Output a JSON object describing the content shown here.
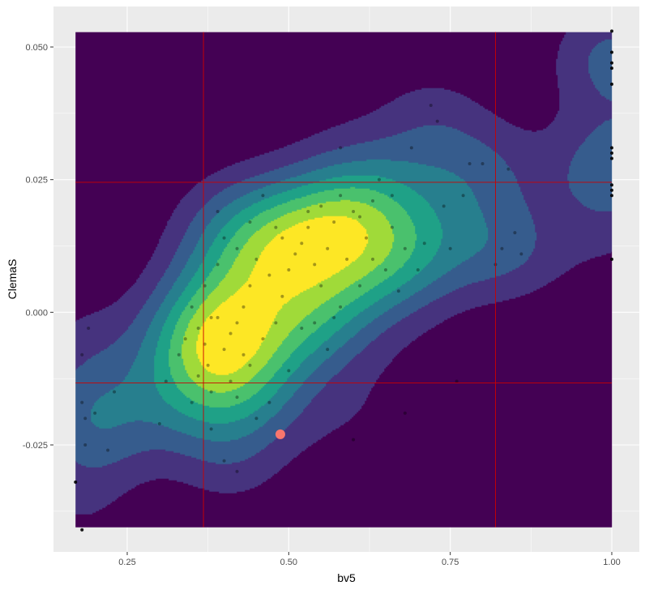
{
  "chart_data": {
    "type": "density2d",
    "xlabel": "bv5",
    "ylabel": "ClemaS",
    "xlim": [
      0.17,
      1.0
    ],
    "ylim": [
      -0.0405,
      0.0528
    ],
    "x_ticks": [
      {
        "value": 0.25,
        "label": "0.25"
      },
      {
        "value": 0.5,
        "label": "0.50"
      },
      {
        "value": 0.75,
        "label": "0.75"
      },
      {
        "value": 1.0,
        "label": "1.00"
      }
    ],
    "y_ticks": [
      {
        "value": -0.025,
        "label": "-0.025"
      },
      {
        "value": 0.0,
        "label": "0.000"
      },
      {
        "value": 0.025,
        "label": "0.025"
      },
      {
        "value": 0.05,
        "label": "0.050"
      }
    ],
    "grid": true,
    "panel_background": "#ebebeb",
    "fill_levels": [
      "#440154",
      "#46337e",
      "#365c8d",
      "#277f8e",
      "#1fa187",
      "#4ac16d",
      "#a0da39",
      "#fde725"
    ],
    "density_peaks": [
      {
        "x": 0.4,
        "y": -0.0075
      },
      {
        "x": 0.57,
        "y": 0.0035
      },
      {
        "x": 0.79,
        "y": 0.0185
      }
    ],
    "reference_lines": {
      "color": "#cc0000",
      "vertical_x": [
        0.368,
        0.82
      ],
      "horizontal_y": [
        0.0245,
        -0.0133
      ]
    },
    "highlight_point": {
      "x": 0.487,
      "y": -0.023,
      "color": "#f8766d"
    },
    "points": [
      [
        0.17,
        -0.032
      ],
      [
        0.18,
        -0.041
      ],
      [
        0.18,
        -0.017
      ],
      [
        0.18,
        -0.008
      ],
      [
        0.185,
        -0.025
      ],
      [
        0.185,
        -0.02
      ],
      [
        0.19,
        -0.003
      ],
      [
        0.2,
        -0.019
      ],
      [
        0.22,
        -0.026
      ],
      [
        0.23,
        -0.015
      ],
      [
        0.3,
        -0.021
      ],
      [
        0.33,
        -0.008
      ],
      [
        0.34,
        -0.005
      ],
      [
        0.35,
        -0.017
      ],
      [
        0.36,
        -0.012
      ],
      [
        0.36,
        -0.003
      ],
      [
        0.37,
        -0.006
      ],
      [
        0.37,
        0.005
      ],
      [
        0.375,
        -0.01
      ],
      [
        0.38,
        -0.015
      ],
      [
        0.38,
        -0.022
      ],
      [
        0.39,
        0.009
      ],
      [
        0.39,
        -0.001
      ],
      [
        0.39,
        0.019
      ],
      [
        0.4,
        0.014
      ],
      [
        0.4,
        -0.007
      ],
      [
        0.41,
        -0.004
      ],
      [
        0.41,
        -0.013
      ],
      [
        0.42,
        -0.002
      ],
      [
        0.42,
        0.012
      ],
      [
        0.42,
        -0.016
      ],
      [
        0.43,
        -0.008
      ],
      [
        0.43,
        0.001
      ],
      [
        0.44,
        -0.01
      ],
      [
        0.44,
        0.005
      ],
      [
        0.45,
        0.01
      ],
      [
        0.45,
        -0.02
      ],
      [
        0.46,
        -0.005
      ],
      [
        0.47,
        0.007
      ],
      [
        0.48,
        0.016
      ],
      [
        0.49,
        0.003
      ],
      [
        0.5,
        0.008
      ],
      [
        0.5,
        -0.011
      ],
      [
        0.51,
        0.011
      ],
      [
        0.52,
        0.013
      ],
      [
        0.53,
        0.016
      ],
      [
        0.54,
        -0.002
      ],
      [
        0.55,
        0.005
      ],
      [
        0.55,
        0.02
      ],
      [
        0.56,
        0.012
      ],
      [
        0.56,
        -0.007
      ],
      [
        0.57,
        0.017
      ],
      [
        0.58,
        0.022
      ],
      [
        0.58,
        0.001
      ],
      [
        0.59,
        0.01
      ],
      [
        0.6,
        0.019
      ],
      [
        0.6,
        -0.024
      ],
      [
        0.61,
        0.005
      ],
      [
        0.62,
        0.014
      ],
      [
        0.63,
        0.01
      ],
      [
        0.64,
        0.025
      ],
      [
        0.65,
        0.008
      ],
      [
        0.66,
        0.016
      ],
      [
        0.67,
        0.004
      ],
      [
        0.68,
        -0.019
      ],
      [
        0.69,
        0.031
      ],
      [
        0.7,
        0.008
      ],
      [
        0.71,
        0.013
      ],
      [
        0.72,
        0.039
      ],
      [
        0.73,
        0.036
      ],
      [
        0.74,
        0.02
      ],
      [
        0.75,
        0.012
      ],
      [
        0.76,
        -0.013
      ],
      [
        0.77,
        0.022
      ],
      [
        0.78,
        0.028
      ],
      [
        0.8,
        0.028
      ],
      [
        0.82,
        0.009
      ],
      [
        0.83,
        0.012
      ],
      [
        0.84,
        0.027
      ],
      [
        0.85,
        0.015
      ],
      [
        0.86,
        0.011
      ],
      [
        0.66,
        0.022
      ],
      [
        0.63,
        0.021
      ],
      [
        0.58,
        0.031
      ],
      [
        0.53,
        0.019
      ],
      [
        0.46,
        0.022
      ],
      [
        0.44,
        0.017
      ],
      [
        0.48,
        -0.002
      ],
      [
        0.52,
        -0.003
      ],
      [
        0.47,
        -0.017
      ],
      [
        0.42,
        -0.03
      ],
      [
        0.4,
        -0.028
      ],
      [
        0.31,
        -0.013
      ],
      [
        0.35,
        0.001
      ],
      [
        0.49,
        0.014
      ],
      [
        0.54,
        0.009
      ],
      [
        0.61,
        0.018
      ],
      [
        0.68,
        0.012
      ],
      [
        0.57,
        -0.001
      ],
      [
        0.38,
        -0.001
      ],
      [
        1.0,
        0.053
      ],
      [
        1.0,
        0.049
      ],
      [
        1.0,
        0.047
      ],
      [
        1.0,
        0.046
      ],
      [
        1.0,
        0.043
      ],
      [
        1.0,
        0.031
      ],
      [
        1.0,
        0.03
      ],
      [
        1.0,
        0.029
      ],
      [
        1.0,
        0.024
      ],
      [
        1.0,
        0.023
      ],
      [
        1.0,
        0.022
      ],
      [
        1.0,
        0.01
      ]
    ]
  }
}
